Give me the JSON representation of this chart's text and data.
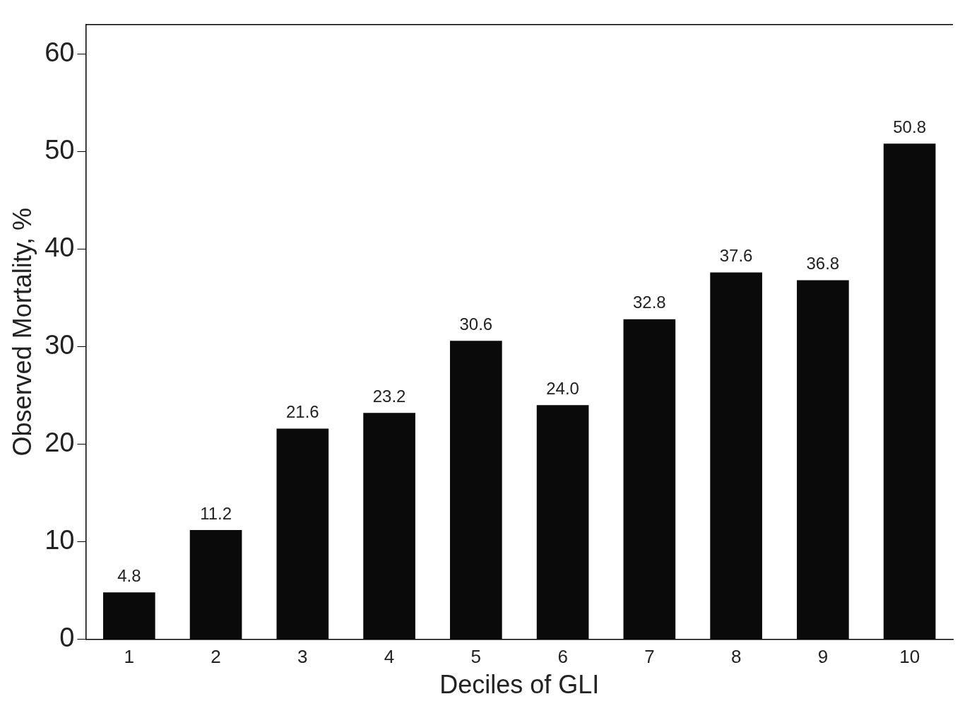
{
  "chart_data": {
    "type": "bar",
    "xlabel": "Deciles of GLI",
    "ylabel": "Observed Mortality, %",
    "categories": [
      "1",
      "2",
      "3",
      "4",
      "5",
      "6",
      "7",
      "8",
      "9",
      "10"
    ],
    "values": [
      4.8,
      11.2,
      21.6,
      23.2,
      30.6,
      24.0,
      32.8,
      37.6,
      36.8,
      50.8
    ],
    "value_labels": [
      "4.8",
      "11.2",
      "21.6",
      "23.2",
      "30.6",
      "24.0",
      "32.8",
      "37.6",
      "36.8",
      "50.8"
    ],
    "color": "#0a0a0a",
    "ylim": [
      0,
      63
    ],
    "yticks": [
      0,
      10,
      20,
      30,
      40,
      50,
      60
    ],
    "grid": false,
    "legend": false
  }
}
